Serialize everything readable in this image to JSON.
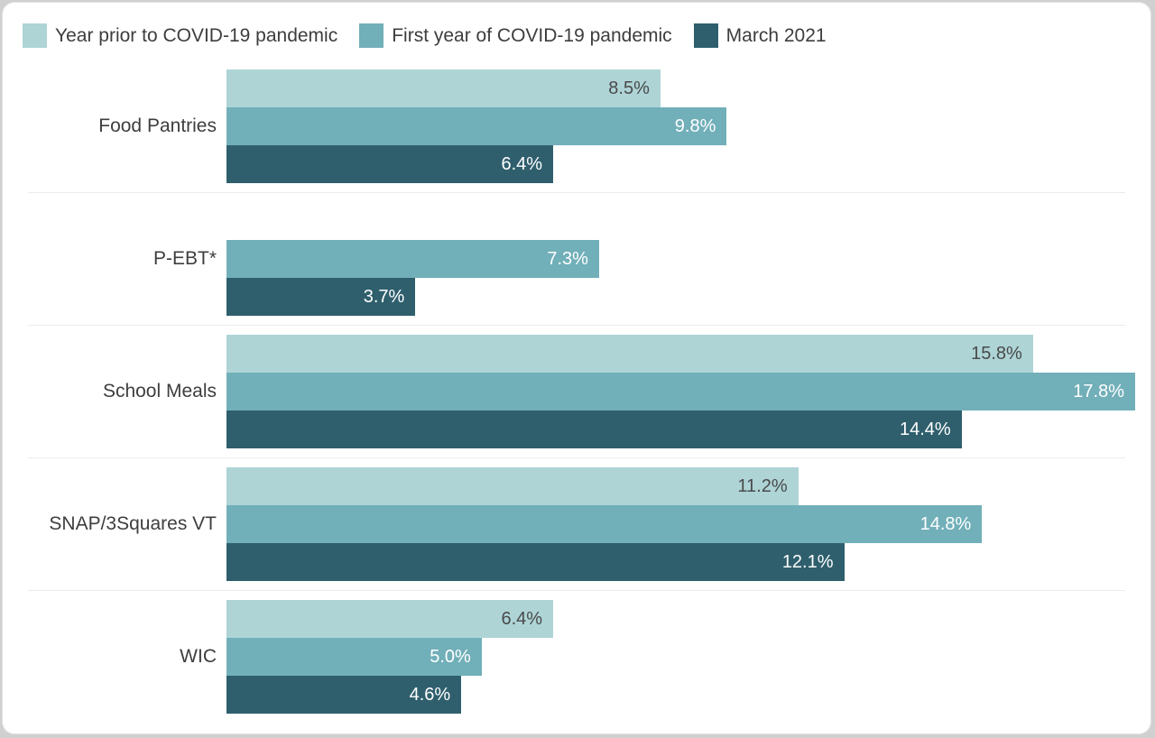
{
  "legend": {
    "items": [
      {
        "label": "Year prior to COVID-19 pandemic",
        "color": "#aed4d6"
      },
      {
        "label": "First year of COVID-19 pandemic",
        "color": "#71afb9"
      },
      {
        "label": "March 2021",
        "color": "#2f5f6d"
      }
    ]
  },
  "chart_data": {
    "type": "bar",
    "orientation": "horizontal",
    "title": "",
    "xlabel": "",
    "ylabel": "",
    "xlim": [
      0,
      18.1
    ],
    "grid": false,
    "legend_position": "top",
    "value_format": "percent_one_decimal",
    "categories": [
      "Food Pantries",
      "P-EBT*",
      "School Meals",
      "SNAP/3Squares VT",
      "WIC"
    ],
    "series": [
      {
        "name": "Year prior to COVID-19 pandemic",
        "color": "#aed4d6",
        "label_color": "#4a4a4a",
        "values": [
          8.5,
          null,
          15.8,
          11.2,
          6.4
        ]
      },
      {
        "name": "First year of COVID-19 pandemic",
        "color": "#71afb9",
        "label_color": "#ffffff",
        "values": [
          9.8,
          7.3,
          17.8,
          14.8,
          5.0
        ]
      },
      {
        "name": "March 2021",
        "color": "#2f5f6d",
        "label_color": "#ffffff",
        "values": [
          6.4,
          3.7,
          14.4,
          12.1,
          4.6
        ]
      }
    ]
  }
}
